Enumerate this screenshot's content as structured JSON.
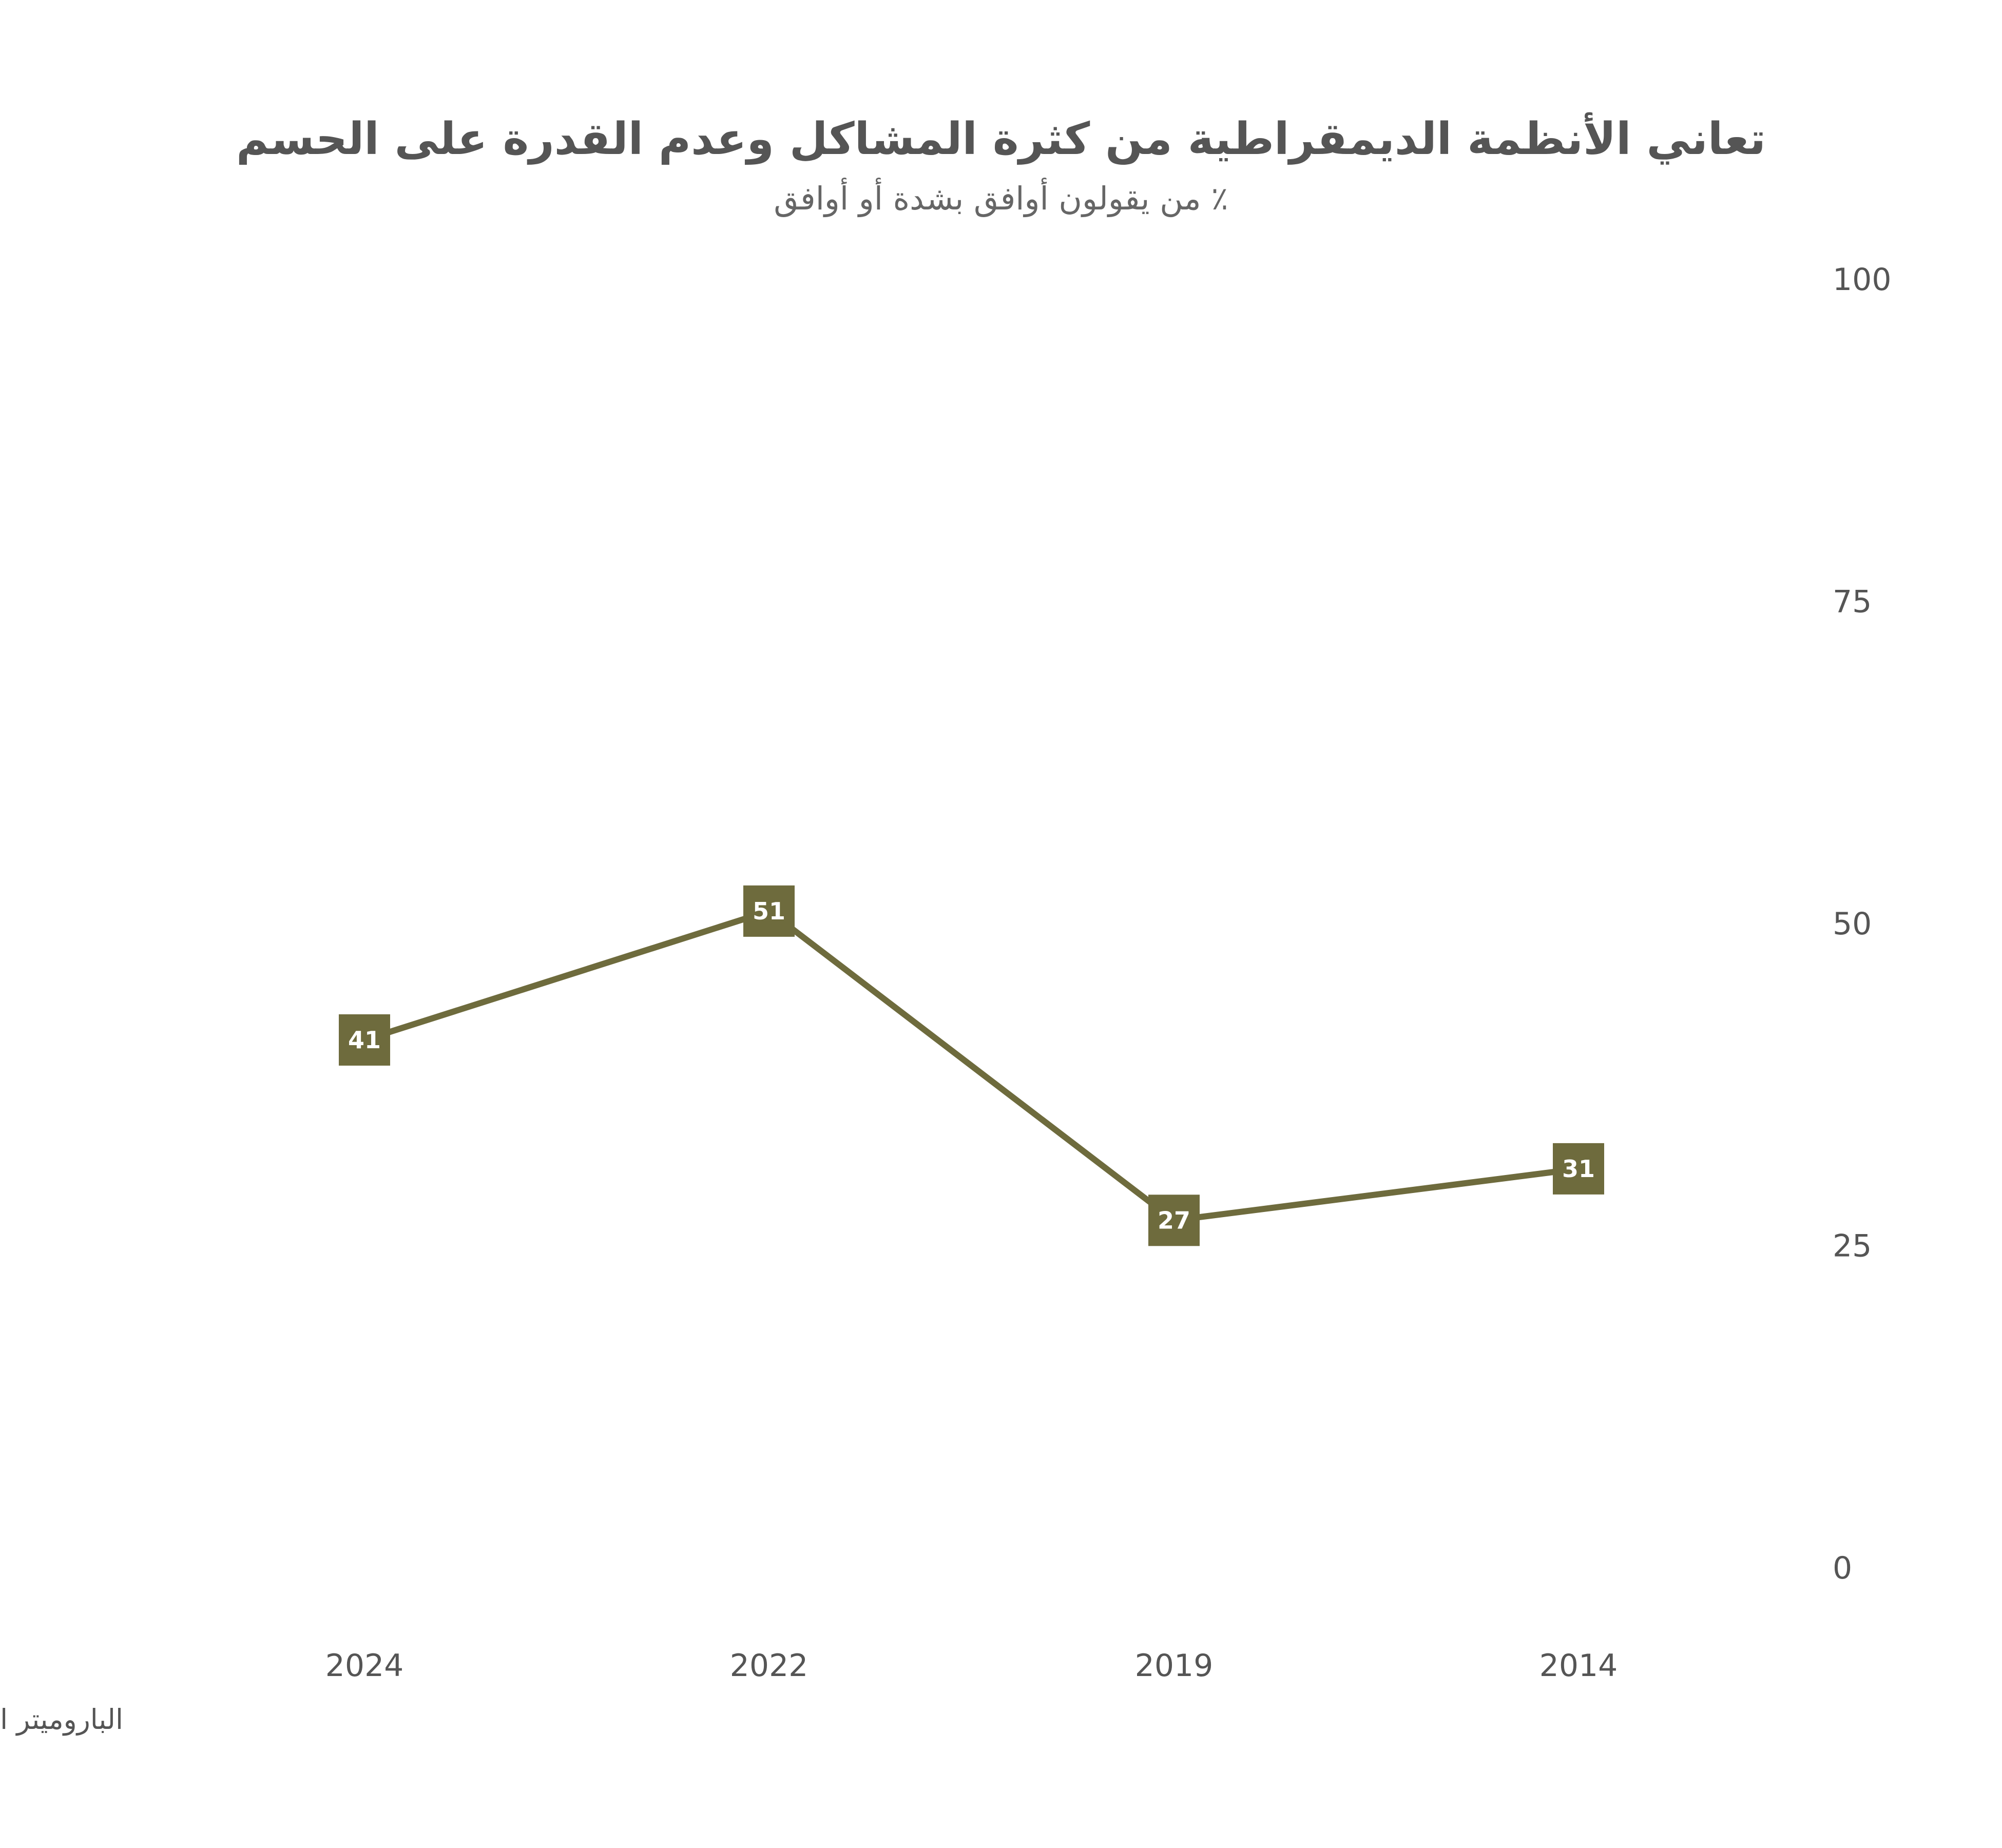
{
  "chart_data": {
    "type": "line",
    "title": "تعاني الأنظمة الديمقراطية من كثرة المشاكل وعدم القدرة على الحسم",
    "subtitle": "٪ من يقولون أوافق بشدة أو أوافق",
    "source": "الباروميتر العربي، الكويت",
    "categories": [
      "2024",
      "2022",
      "2019",
      "2014"
    ],
    "series": [
      {
        "values": [
          41,
          51,
          27,
          31
        ],
        "color": "#6e6b3d"
      }
    ],
    "ylim": [
      0,
      100
    ],
    "yticks": [
      0,
      25,
      50,
      75,
      100
    ],
    "y_axis_position": "right",
    "grid": false,
    "legend": "none",
    "colors": {
      "series": "#6e6b3d",
      "text": "#555555",
      "label_text": "#ffffff"
    }
  }
}
